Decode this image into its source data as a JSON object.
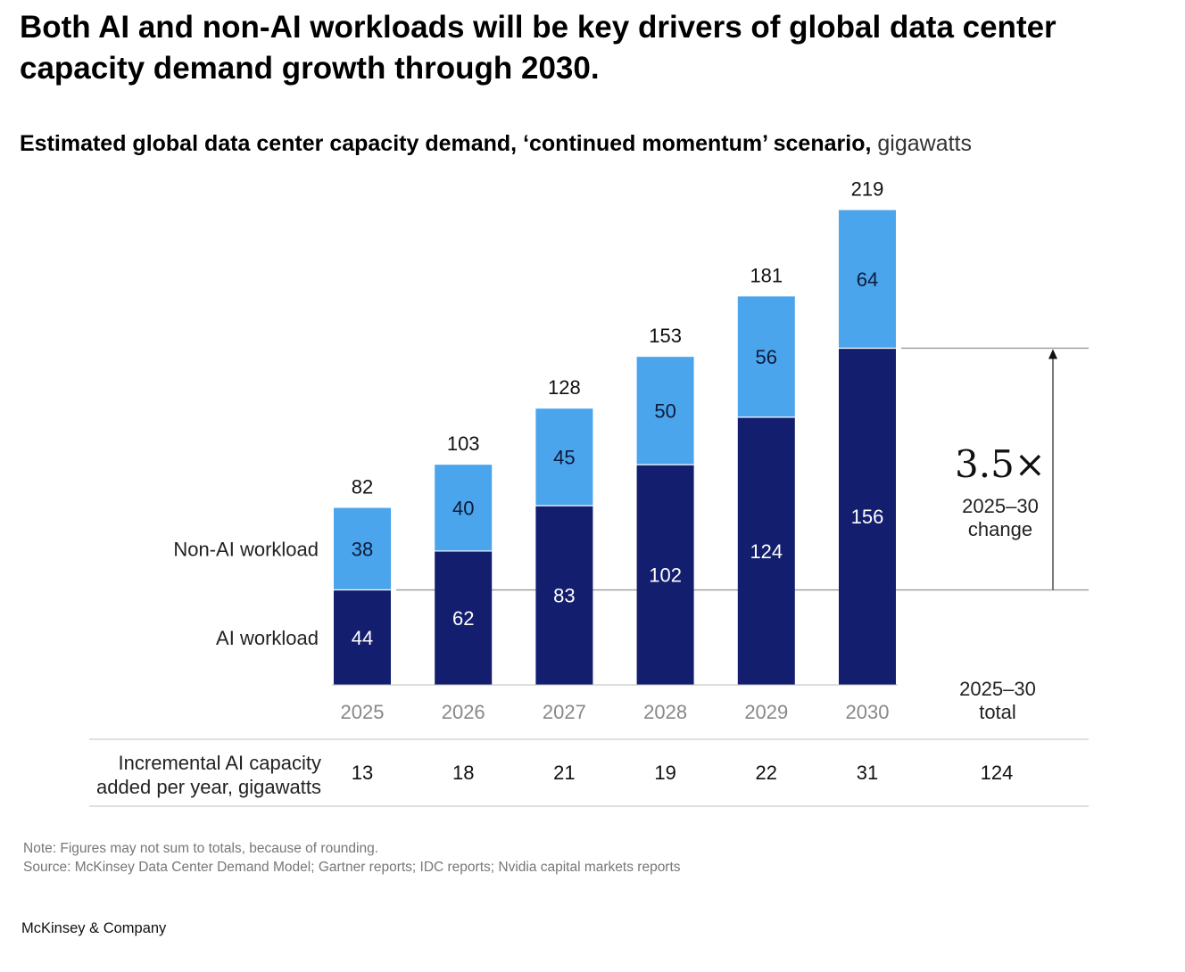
{
  "title": "Both AI and non-AI workloads will be key drivers of global data center capacity demand growth through 2030.",
  "subtitle_main": "Estimated global data center capacity demand, ‘continued momentum’ scenario,",
  "subtitle_unit": "gigawatts",
  "chart_data": {
    "type": "bar",
    "stacked": true,
    "categories": [
      "2025",
      "2026",
      "2027",
      "2028",
      "2029",
      "2030"
    ],
    "series": [
      {
        "name": "AI workload",
        "values": [
          44,
          62,
          83,
          102,
          124,
          156
        ],
        "color": "#131e6e"
      },
      {
        "name": "Non-AI workload",
        "values": [
          38,
          40,
          45,
          50,
          56,
          64
        ],
        "color": "#4ba5ec"
      }
    ],
    "totals": [
      82,
      103,
      128,
      153,
      181,
      219
    ],
    "ylim": [
      0,
      219
    ],
    "annotation": {
      "value": "3.5×",
      "label_line1": "2025–30",
      "label_line2": "change"
    },
    "table": {
      "row_label_line1": "Incremental AI capacity",
      "row_label_line2": "added per year, gigawatts",
      "values": [
        13,
        18,
        21,
        19,
        22,
        31
      ],
      "total_header_line1": "2025–30",
      "total_header_line2": "total",
      "total_value": 124
    }
  },
  "notes": {
    "note": "Note: Figures may not sum to totals, because of rounding.",
    "source": "Source: McKinsey Data Center Demand Model; Gartner reports; IDC reports; Nvidia capital markets reports"
  },
  "brand": "McKinsey & Company",
  "colors": {
    "ai": "#131e6e",
    "non_ai": "#4ba5ec",
    "grid": "#999999"
  }
}
